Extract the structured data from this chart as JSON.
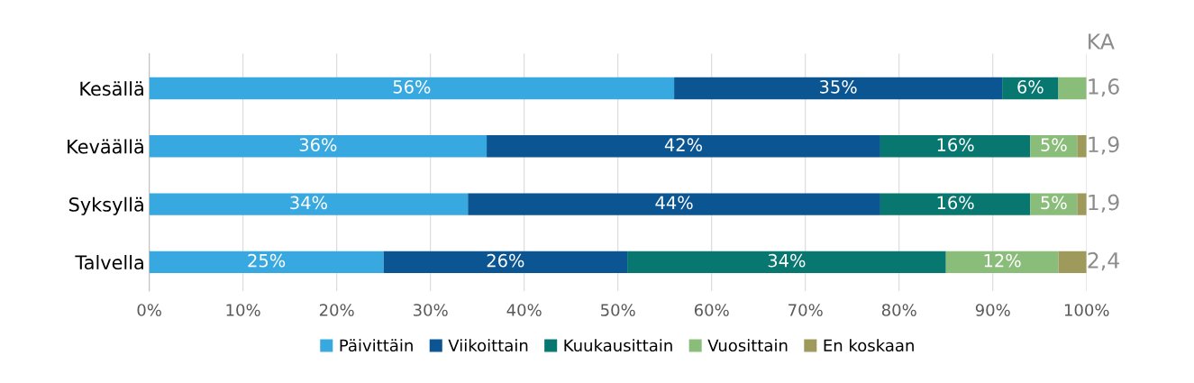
{
  "chart_data": {
    "type": "bar",
    "orientation": "horizontal",
    "stacked": true,
    "categories": [
      "Kesällä",
      "Keväällä",
      "Syksyllä",
      "Talvella"
    ],
    "series": [
      {
        "name": "Päivittäin",
        "color": "#38a9e0",
        "values": [
          56,
          36,
          34,
          25
        ],
        "value_labels": [
          "56%",
          "36%",
          "34%",
          "25%"
        ]
      },
      {
        "name": "Viikoittain",
        "color": "#0a5592",
        "values": [
          35,
          42,
          44,
          26
        ],
        "value_labels": [
          "35%",
          "42%",
          "44%",
          "26%"
        ]
      },
      {
        "name": "Kuukausittain",
        "color": "#077770",
        "values": [
          6,
          16,
          16,
          34
        ],
        "value_labels": [
          "6%",
          "16%",
          "16%",
          "34%"
        ]
      },
      {
        "name": "Vuosittain",
        "color": "#8bbd7a",
        "values": [
          3,
          5,
          5,
          12
        ],
        "value_labels": [
          null,
          "5%",
          "5%",
          "12%"
        ]
      },
      {
        "name": "En koskaan",
        "color": "#9e9a5c",
        "values": [
          0,
          1,
          1,
          3
        ]
      }
    ],
    "xlim": [
      0,
      100
    ],
    "xticks": [
      {
        "value": 0,
        "label": "0%"
      },
      {
        "value": 10,
        "label": "10%"
      },
      {
        "value": 20,
        "label": "20%"
      },
      {
        "value": 30,
        "label": "30%"
      },
      {
        "value": 40,
        "label": "40%"
      },
      {
        "value": 50,
        "label": "50%"
      },
      {
        "value": 60,
        "label": "60%"
      },
      {
        "value": 70,
        "label": "70%"
      },
      {
        "value": 80,
        "label": "80%"
      },
      {
        "value": 90,
        "label": "90%"
      },
      {
        "value": 100,
        "label": "100%"
      }
    ],
    "grid": "x",
    "legend": "bottom",
    "annotations": [
      "KA",
      "1,6",
      "1,9",
      "1,9",
      "2,4"
    ]
  }
}
